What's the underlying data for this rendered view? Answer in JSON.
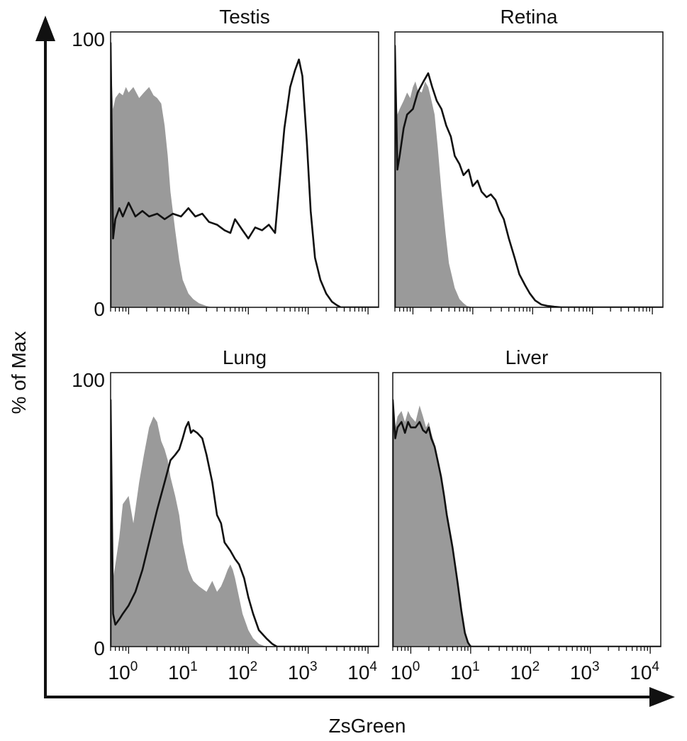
{
  "figure": {
    "ylabel": "% of Max",
    "xlabel": "ZsGreen"
  },
  "colors": {
    "control_fill": "#9a9a9a",
    "sample_line": "#111111",
    "axis": "#111111"
  },
  "chart_data": [
    {
      "type": "area",
      "title": "Testis",
      "x_scale": "log",
      "xlim": [
        0.5,
        15000
      ],
      "ylim": [
        0,
        100
      ],
      "y_ticks": [
        "0",
        "100"
      ],
      "x_ticks": [],
      "series": [
        {
          "style": "filled",
          "x": [
            0.5,
            0.55,
            0.6,
            0.7,
            0.8,
            0.9,
            1.0,
            1.2,
            1.5,
            1.8,
            2.2,
            2.6,
            3.0,
            3.5,
            4.0,
            4.5,
            5.0,
            6.0,
            7.0,
            8.0,
            10,
            12,
            15,
            20,
            25,
            30
          ],
          "y": [
            92,
            72,
            76,
            78,
            77,
            80,
            78,
            80,
            76,
            78,
            80,
            77,
            76,
            74,
            66,
            55,
            42,
            28,
            17,
            10,
            5,
            3,
            1.5,
            0.5,
            0,
            0
          ]
        },
        {
          "style": "line",
          "x": [
            0.5,
            0.55,
            0.6,
            0.7,
            0.8,
            1.0,
            1.3,
            1.7,
            2.2,
            3.0,
            4.0,
            5.5,
            7.5,
            10,
            13,
            17,
            22,
            30,
            40,
            50,
            60,
            80,
            100,
            130,
            170,
            220,
            280,
            330,
            400,
            500,
            600,
            700,
            800,
            950,
            1100,
            1300,
            1600,
            2000,
            2500,
            3000,
            3500,
            5000,
            15000
          ],
          "y": [
            96,
            25,
            32,
            36,
            33,
            38,
            33,
            35,
            33,
            34,
            32,
            34,
            33,
            36,
            33,
            34,
            31,
            30,
            28,
            27,
            32,
            28,
            25,
            29,
            28,
            30,
            27,
            45,
            65,
            80,
            86,
            90,
            84,
            60,
            35,
            18,
            10,
            5,
            2,
            0.8,
            0,
            0,
            0
          ]
        }
      ]
    },
    {
      "type": "area",
      "title": "Retina",
      "x_scale": "log",
      "xlim": [
        0.5,
        15000
      ],
      "ylim": [
        0,
        100
      ],
      "y_ticks": [],
      "x_ticks": [],
      "series": [
        {
          "style": "filled",
          "x": [
            0.5,
            0.55,
            0.6,
            0.7,
            0.8,
            0.9,
            1.0,
            1.1,
            1.2,
            1.4,
            1.6,
            1.8,
            2.0,
            2.3,
            2.6,
            3.0,
            3.5,
            4.0,
            5.0,
            6.0,
            7.0,
            8.0,
            10,
            12,
            15
          ],
          "y": [
            85,
            70,
            72,
            75,
            78,
            76,
            80,
            82,
            79,
            78,
            82,
            80,
            76,
            70,
            58,
            42,
            27,
            16,
            7,
            3,
            1.5,
            0.5,
            0,
            0,
            0
          ]
        },
        {
          "style": "line",
          "x": [
            0.5,
            0.55,
            0.6,
            0.7,
            0.8,
            1.0,
            1.2,
            1.5,
            1.8,
            2.1,
            2.5,
            3.0,
            3.6,
            4.3,
            5.0,
            6.0,
            7.0,
            8.5,
            10,
            12,
            14,
            17,
            20,
            24,
            28,
            33,
            40,
            50,
            60,
            75,
            90,
            110,
            140,
            180,
            230,
            300,
            15000
          ],
          "y": [
            95,
            50,
            55,
            65,
            70,
            72,
            78,
            82,
            85,
            80,
            75,
            72,
            66,
            62,
            55,
            52,
            48,
            50,
            44,
            46,
            42,
            40,
            41,
            39,
            35,
            32,
            25,
            18,
            12,
            8,
            5,
            2.5,
            1,
            0.5,
            0.2,
            0,
            0
          ]
        }
      ]
    },
    {
      "type": "area",
      "title": "Lung",
      "x_scale": "log",
      "xlim": [
        0.5,
        15000
      ],
      "ylim": [
        0,
        100
      ],
      "y_ticks": [
        "0",
        "100"
      ],
      "x_ticks": [
        "10^0",
        "10^1",
        "10^2",
        "10^3",
        "10^4"
      ],
      "series": [
        {
          "style": "filled",
          "x": [
            0.5,
            0.55,
            0.6,
            0.7,
            0.8,
            1.0,
            1.2,
            1.5,
            1.8,
            2.2,
            2.6,
            3.0,
            3.5,
            4.0,
            4.5,
            5.0,
            6.0,
            7.0,
            8.0,
            10,
            12,
            15,
            20,
            25,
            30,
            35,
            40,
            45,
            50,
            55,
            60,
            70,
            80,
            100,
            120,
            150,
            180,
            200
          ],
          "y": [
            88,
            25,
            30,
            40,
            52,
            55,
            45,
            60,
            70,
            80,
            84,
            82,
            75,
            72,
            68,
            62,
            55,
            48,
            38,
            28,
            24,
            22,
            20,
            24,
            20,
            22,
            25,
            28,
            30,
            28,
            25,
            18,
            12,
            6,
            3,
            1,
            0.3,
            0
          ]
        },
        {
          "style": "line",
          "x": [
            0.5,
            0.55,
            0.6,
            0.7,
            0.8,
            1.0,
            1.3,
            1.7,
            2.2,
            3.0,
            4.0,
            5.0,
            6.0,
            7.0,
            8.0,
            9.0,
            10,
            11,
            12,
            14,
            17,
            20,
            25,
            30,
            35,
            40,
            50,
            60,
            70,
            85,
            100,
            120,
            150,
            200,
            250,
            300,
            15000
          ],
          "y": [
            90,
            12,
            8,
            10,
            12,
            15,
            20,
            28,
            38,
            50,
            60,
            68,
            70,
            72,
            76,
            80,
            82,
            78,
            79,
            78,
            76,
            70,
            60,
            48,
            45,
            38,
            35,
            32,
            30,
            25,
            18,
            12,
            6,
            3,
            1,
            0,
            0
          ]
        }
      ]
    },
    {
      "type": "area",
      "title": "Liver",
      "x_scale": "log",
      "xlim": [
        0.5,
        15000
      ],
      "ylim": [
        0,
        100
      ],
      "y_ticks": [],
      "x_ticks": [
        "10^0",
        "10^1",
        "10^2",
        "10^3",
        "10^4"
      ],
      "series": [
        {
          "style": "filled",
          "x": [
            0.5,
            0.55,
            0.6,
            0.7,
            0.8,
            0.9,
            1.0,
            1.2,
            1.4,
            1.6,
            1.8,
            2.0,
            2.2,
            2.5,
            2.8,
            3.2,
            3.6,
            4.0,
            5.0,
            6.0,
            7.0,
            8.0,
            9.0,
            10,
            12
          ],
          "y": [
            90,
            80,
            84,
            86,
            82,
            86,
            84,
            82,
            88,
            84,
            80,
            82,
            78,
            74,
            68,
            62,
            56,
            50,
            38,
            25,
            14,
            6,
            2,
            0.5,
            0
          ]
        },
        {
          "style": "line",
          "x": [
            0.5,
            0.55,
            0.6,
            0.7,
            0.8,
            0.9,
            1.0,
            1.2,
            1.4,
            1.6,
            1.8,
            2.0,
            2.2,
            2.5,
            2.8,
            3.2,
            3.6,
            4.0,
            5.0,
            6.0,
            7.0,
            8.0,
            9.0,
            10,
            15000
          ],
          "y": [
            90,
            76,
            80,
            82,
            78,
            82,
            80,
            80,
            82,
            79,
            78,
            80,
            76,
            73,
            68,
            62,
            55,
            48,
            36,
            24,
            13,
            5,
            1.5,
            0,
            0
          ]
        }
      ]
    }
  ]
}
